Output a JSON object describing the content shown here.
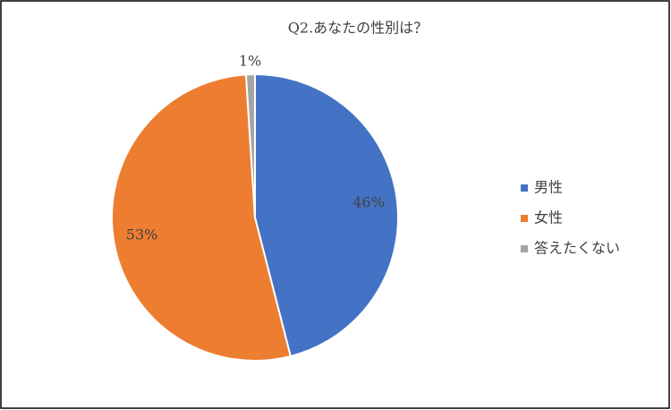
{
  "chart_data": {
    "type": "pie",
    "title": "Q2.あなたの性別は？",
    "categories": [
      "男性",
      "女性",
      "答えたくない"
    ],
    "values": [
      46,
      53,
      1
    ],
    "value_labels": [
      "46%",
      "53%",
      "1%"
    ],
    "colors": [
      "#4472c4",
      "#ed7d31",
      "#a5a5a5"
    ],
    "legend": "right"
  }
}
